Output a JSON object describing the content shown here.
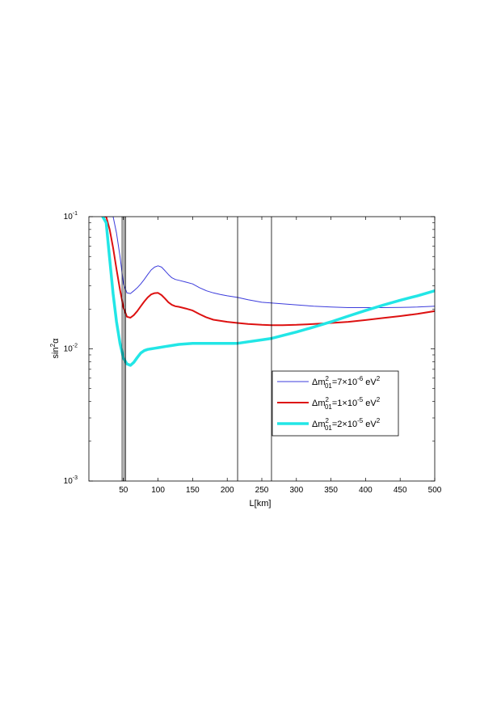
{
  "chart_data": {
    "type": "line",
    "xlabel": "L[km]",
    "ylabel_parts": {
      "base": "sin",
      "sup": "2",
      "tail": "α"
    },
    "xlim": [
      0,
      500
    ],
    "ylim": [
      0.001,
      0.1
    ],
    "yscale": "log",
    "grid": false,
    "legend_position": "center-right",
    "x_ticks": [
      50,
      100,
      150,
      200,
      250,
      300,
      350,
      400,
      450,
      500
    ],
    "x_tick_labels": [
      "50",
      "100",
      "150",
      "200",
      "250",
      "300",
      "350",
      "400",
      "450",
      "500"
    ],
    "y_ticks": [
      {
        "value": 0.1,
        "base": "10",
        "exp": "-1"
      },
      {
        "value": 0.01,
        "base": "10",
        "exp": "-2"
      },
      {
        "value": 0.001,
        "base": "10",
        "exp": "-3"
      }
    ],
    "vertical_lines": [
      48,
      51,
      53,
      215,
      264
    ],
    "series": [
      {
        "name_parts": {
          "pre": "Δm",
          "sup": "2",
          "sub": "01",
          "mid": "=7×10",
          "exp": "-6",
          "unit": " eV",
          "unitsup": "2"
        },
        "color": "#3c3cdc",
        "width": 1,
        "x": [
          20,
          25,
          30,
          35,
          40,
          45,
          50,
          55,
          60,
          65,
          70,
          75,
          80,
          85,
          90,
          95,
          100,
          105,
          110,
          115,
          120,
          125,
          130,
          140,
          150,
          160,
          170,
          180,
          190,
          200,
          215,
          230,
          250,
          275,
          300,
          325,
          350,
          375,
          400,
          425,
          450,
          475,
          500
        ],
        "y": [
          0.1,
          0.1,
          0.1,
          0.1,
          0.075,
          0.05,
          0.031,
          0.0265,
          0.0262,
          0.0275,
          0.029,
          0.031,
          0.0335,
          0.0365,
          0.0395,
          0.0415,
          0.0425,
          0.0415,
          0.039,
          0.0365,
          0.0345,
          0.0335,
          0.033,
          0.032,
          0.031,
          0.029,
          0.0275,
          0.0265,
          0.0258,
          0.0252,
          0.0245,
          0.0235,
          0.0225,
          0.022,
          0.0215,
          0.021,
          0.0207,
          0.0205,
          0.0205,
          0.0205,
          0.0206,
          0.0207,
          0.021
        ]
      },
      {
        "name_parts": {
          "pre": "Δm",
          "sup": "2",
          "sub": "01",
          "mid": "=1×10",
          "exp": "-5",
          "unit": " eV",
          "unitsup": "2"
        },
        "color": "#dd1111",
        "width": 2,
        "x": [
          20,
          25,
          30,
          35,
          40,
          45,
          50,
          55,
          60,
          65,
          70,
          75,
          80,
          85,
          90,
          95,
          100,
          105,
          110,
          115,
          120,
          125,
          130,
          140,
          150,
          160,
          170,
          180,
          200,
          215,
          230,
          250,
          264,
          280,
          300,
          325,
          350,
          375,
          400,
          425,
          450,
          475,
          500
        ],
        "y": [
          0.1,
          0.1,
          0.08,
          0.058,
          0.04,
          0.028,
          0.0205,
          0.0175,
          0.0172,
          0.018,
          0.0193,
          0.021,
          0.0228,
          0.0245,
          0.0258,
          0.0264,
          0.0265,
          0.0255,
          0.024,
          0.0225,
          0.0215,
          0.021,
          0.0208,
          0.0202,
          0.0195,
          0.0183,
          0.0173,
          0.0166,
          0.016,
          0.0157,
          0.0154,
          0.0152,
          0.0151,
          0.0151,
          0.0152,
          0.0154,
          0.0157,
          0.016,
          0.0165,
          0.0171,
          0.0177,
          0.0184,
          0.0193
        ]
      },
      {
        "name_parts": {
          "pre": "Δm",
          "sup": "2",
          "sub": "01",
          "mid": "=2×10",
          "exp": "-5",
          "unit": " eV",
          "unitsup": "2"
        },
        "color": "#22e6e6",
        "width": 3.5,
        "x": [
          20,
          25,
          30,
          35,
          40,
          45,
          50,
          55,
          60,
          65,
          70,
          75,
          80,
          85,
          90,
          95,
          100,
          110,
          120,
          130,
          140,
          150,
          175,
          200,
          215,
          230,
          250,
          264,
          280,
          300,
          325,
          350,
          375,
          400,
          425,
          450,
          475,
          500
        ],
        "y": [
          0.1,
          0.09,
          0.048,
          0.026,
          0.016,
          0.011,
          0.0085,
          0.0077,
          0.0075,
          0.0079,
          0.0086,
          0.0093,
          0.0097,
          0.0099,
          0.01,
          0.0101,
          0.0102,
          0.0104,
          0.0106,
          0.0108,
          0.0109,
          0.011,
          0.011,
          0.011,
          0.011,
          0.0113,
          0.0117,
          0.012,
          0.0126,
          0.0134,
          0.0146,
          0.016,
          0.0177,
          0.0195,
          0.0214,
          0.0233,
          0.0252,
          0.0275
        ]
      }
    ]
  }
}
